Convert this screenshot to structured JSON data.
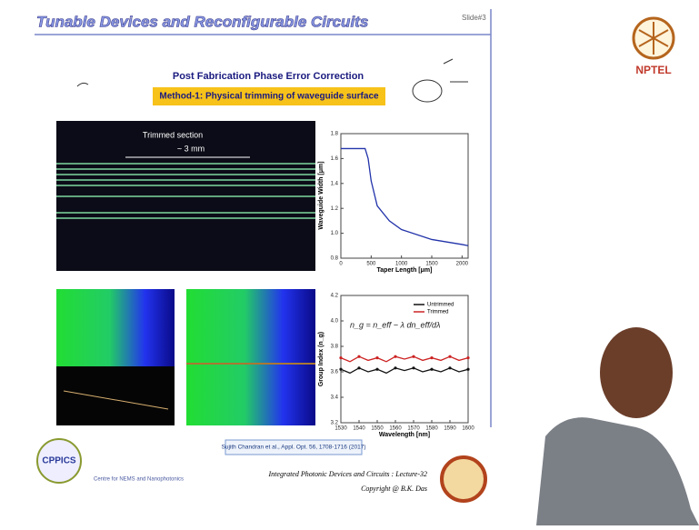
{
  "slide": {
    "title": "Tunable Devices and Reconfigurable Circuits",
    "slide_number": "Slide#3",
    "heading": "Post Fabrication Phase Error Correction",
    "method": "Method-1: Physical trimming of waveguide surface",
    "photo_label": "Trimmed section",
    "photo_dimension": "~ 3 mm",
    "equation": "n_g = n_eff − λ dn_eff/dλ",
    "citation": "Sujith Chandran et al., Appl. Opt. 56, 1708-1716 (2017)",
    "course": "Integrated Photonic Devices and Circuits : Lecture-32",
    "copyright": "Copyright @ B.K. Das",
    "centre": "Centre for NEMS and Nanophotonics",
    "logo_left": "CPPICS",
    "logo_right": "NPTEL"
  },
  "chart_data": [
    {
      "type": "line",
      "x_label": "Taper Length [μm]",
      "y_label": "Waveguide Width [μm]",
      "xlim": [
        0,
        2100
      ],
      "ylim": [
        0.8,
        1.8
      ],
      "xticks": [
        0,
        500,
        1000,
        1500,
        2000
      ],
      "yticks": [
        {
          "value": 0.8,
          "label": "0.8"
        },
        {
          "value": 1,
          "label": "1.0"
        },
        {
          "value": 1.2,
          "label": "1.2"
        },
        {
          "value": 1.4,
          "label": "1.4"
        },
        {
          "value": 1.6,
          "label": "1.6"
        },
        {
          "value": 1.8,
          "label": "1.8"
        }
      ],
      "series": [
        {
          "color": "#2233aa",
          "x": [
            0,
            400,
            450,
            500,
            600,
            800,
            1000,
            1500,
            2000,
            2100
          ],
          "values": [
            1.68,
            1.68,
            1.6,
            1.42,
            1.22,
            1.1,
            1.03,
            0.95,
            0.91,
            0.9
          ]
        }
      ]
    },
    {
      "type": "line",
      "x_label": "Wavelength [nm]",
      "y_label": "Group Index (n_g)",
      "xlim": [
        1530,
        1600
      ],
      "ylim": [
        3.2,
        4.2
      ],
      "xticks": [
        1530,
        1540,
        1550,
        1560,
        1570,
        1580,
        1590,
        1600
      ],
      "yticks": [
        3.2,
        3.4,
        3.6,
        3.8,
        {
          "value": 4,
          "label": "4.0"
        },
        4.2
      ],
      "series": [
        {
          "name": "Untrimmed",
          "color": "#111111",
          "x": [
            1530,
            1535,
            1540,
            1545,
            1550,
            1555,
            1560,
            1565,
            1570,
            1575,
            1580,
            1585,
            1590,
            1595,
            1600
          ],
          "values": [
            3.62,
            3.59,
            3.63,
            3.6,
            3.62,
            3.59,
            3.63,
            3.61,
            3.63,
            3.6,
            3.62,
            3.6,
            3.63,
            3.6,
            3.62
          ]
        },
        {
          "name": "Trimmed",
          "color": "#cc2222",
          "x": [
            1530,
            1535,
            1540,
            1545,
            1550,
            1555,
            1560,
            1565,
            1570,
            1575,
            1580,
            1585,
            1590,
            1595,
            1600
          ],
          "values": [
            3.71,
            3.68,
            3.72,
            3.69,
            3.71,
            3.68,
            3.72,
            3.7,
            3.72,
            3.69,
            3.71,
            3.69,
            3.72,
            3.69,
            3.71
          ]
        }
      ]
    }
  ]
}
